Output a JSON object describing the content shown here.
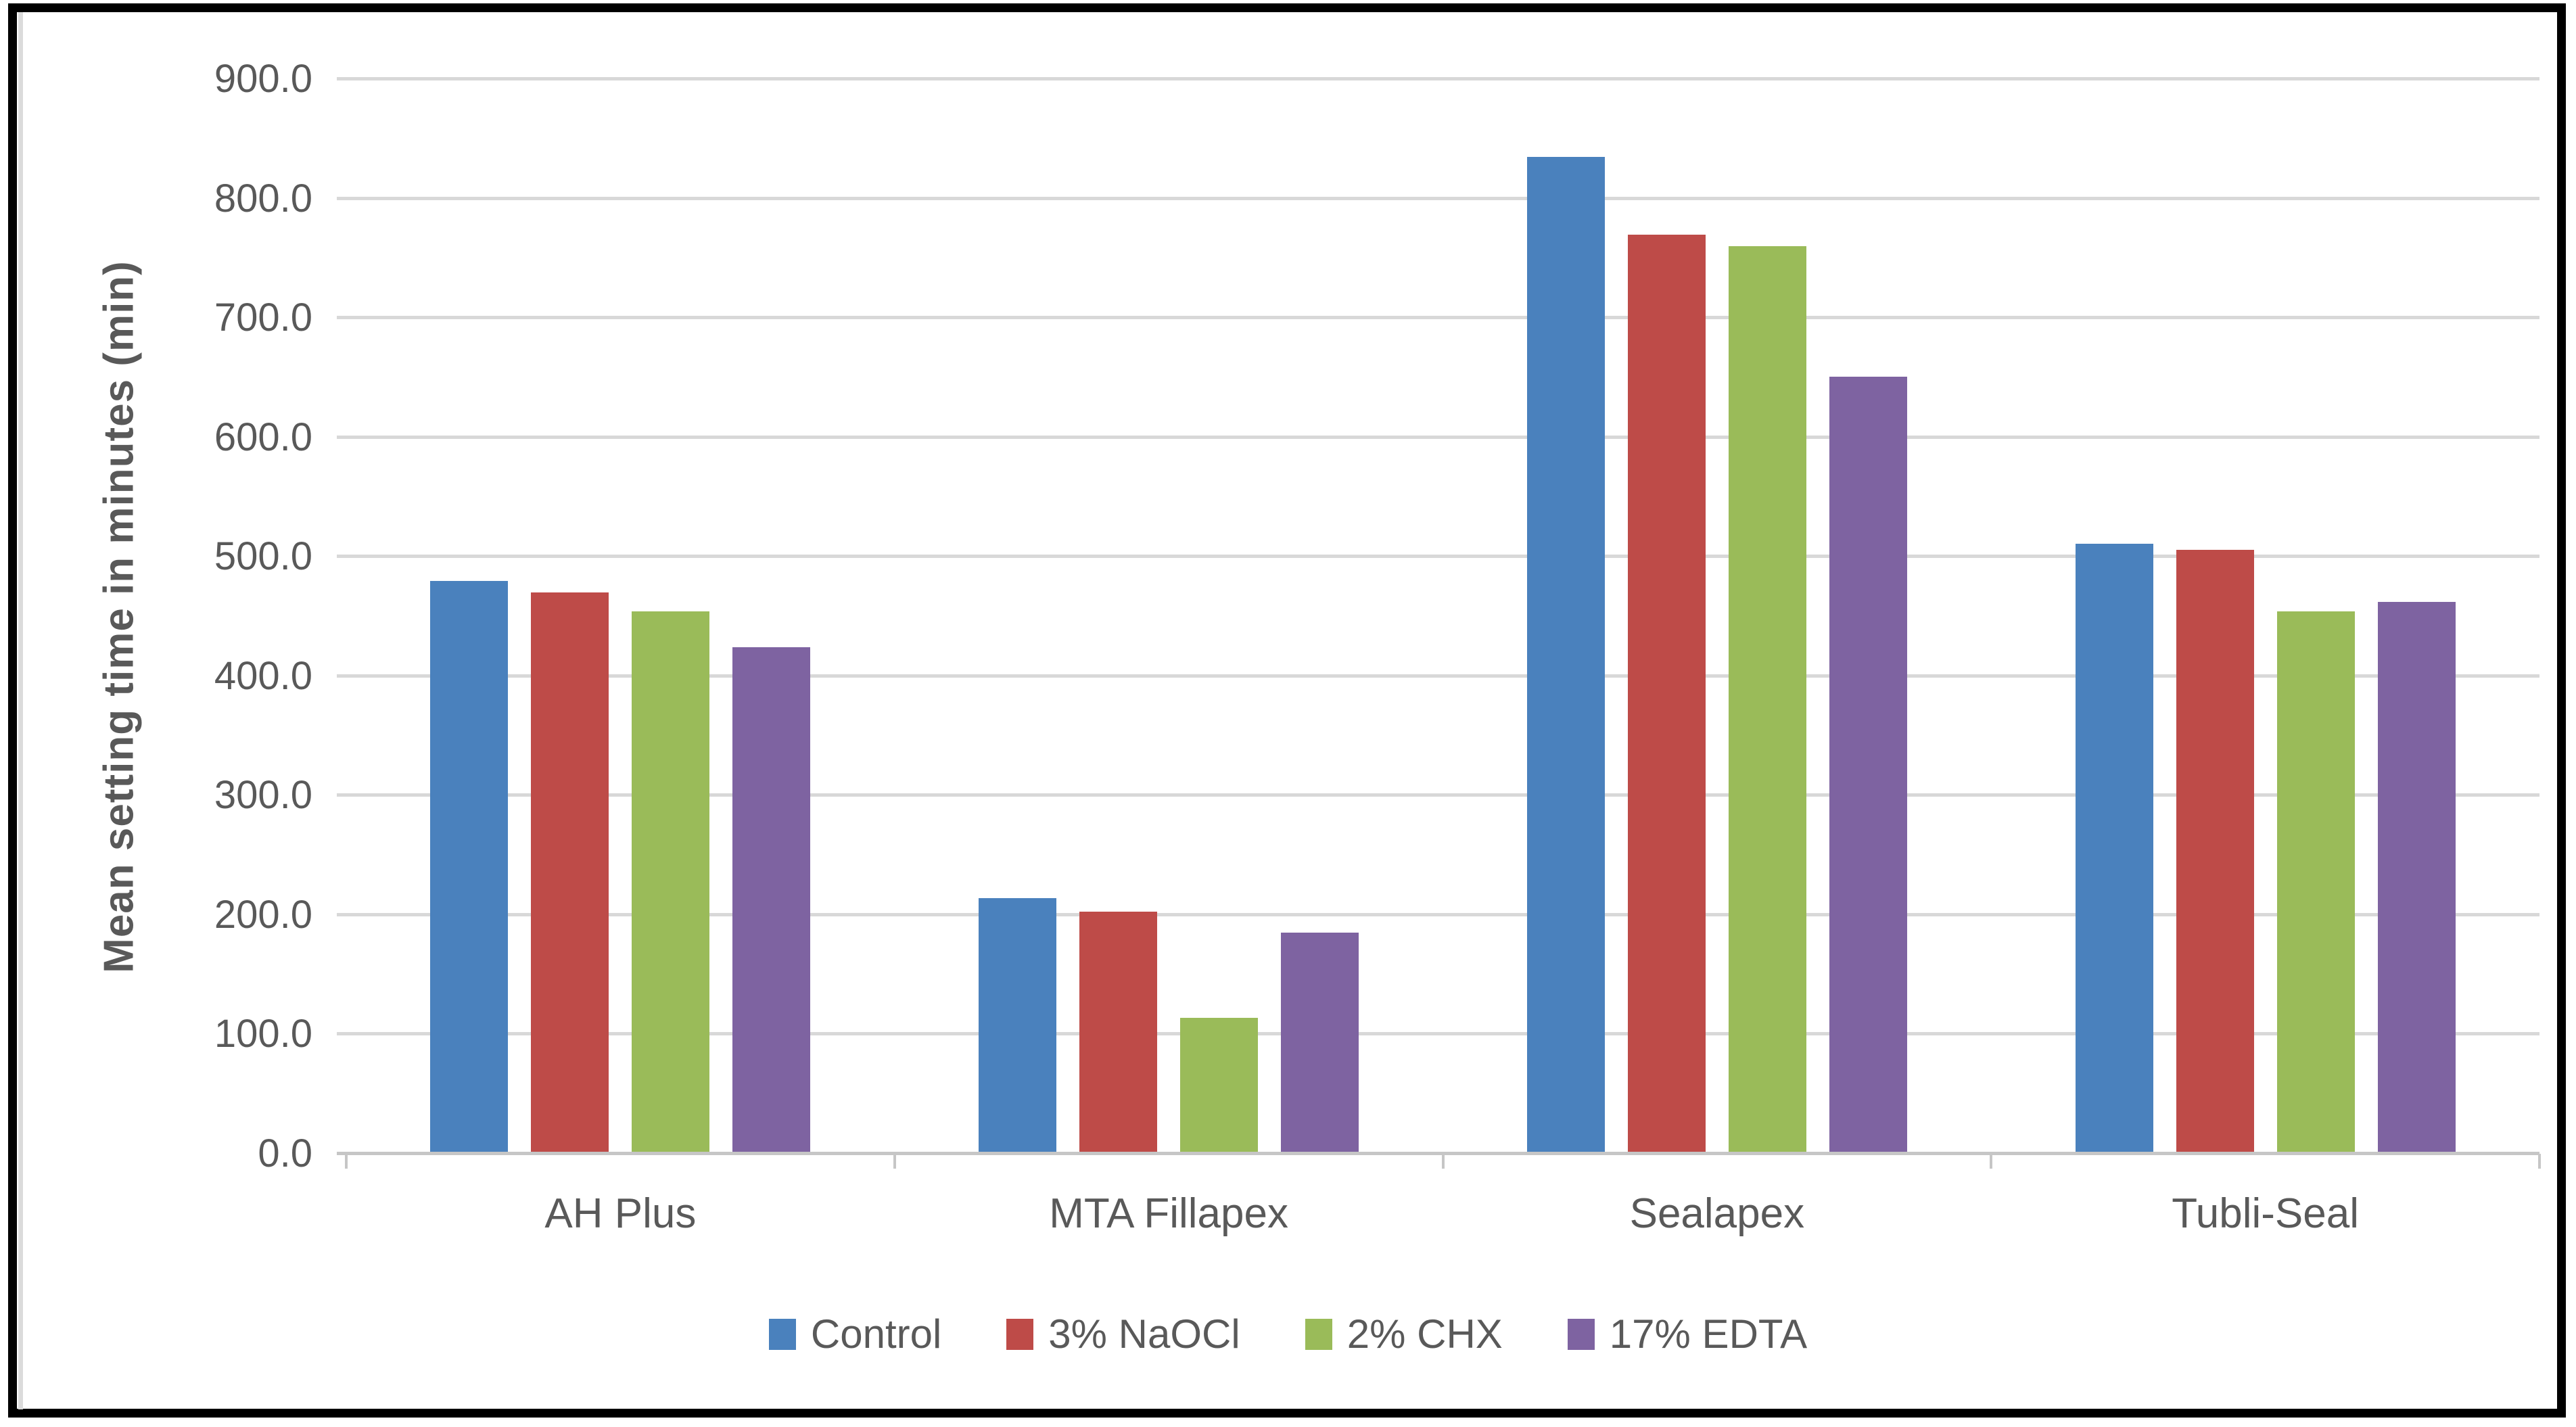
{
  "figure": {
    "background_color": "#ffffff",
    "border_color": "#000000",
    "text_color": "#595959",
    "gridline_color": "#D8D8D8",
    "axis_line_color": "#C6C6C6"
  },
  "chart_data": {
    "type": "bar",
    "title": "",
    "xlabel": "",
    "ylabel": "Mean setting time in minutes (min)",
    "ylim": [
      0,
      900
    ],
    "ytick_step": 100,
    "ytick_labels": [
      "0.0",
      "100.0",
      "200.0",
      "300.0",
      "400.0",
      "500.0",
      "600.0",
      "700.0",
      "800.0",
      "900.0"
    ],
    "grid": true,
    "legend_position": "bottom",
    "categories": [
      "AH Plus",
      "MTA Fillapex",
      "Sealapex",
      "Tubli-Seal"
    ],
    "series": [
      {
        "name": "Control",
        "color": "#4A81BD",
        "values": [
          480,
          214,
          835,
          511
        ]
      },
      {
        "name": "3% NaOCl",
        "color": "#BE4B48",
        "values": [
          470,
          203,
          770,
          506
        ]
      },
      {
        "name": "2% CHX",
        "color": "#9ABB59",
        "values": [
          454,
          114,
          760,
          454
        ]
      },
      {
        "name": "17% EDTA",
        "color": "#7E63A1",
        "values": [
          424,
          185,
          651,
          462
        ]
      }
    ]
  }
}
